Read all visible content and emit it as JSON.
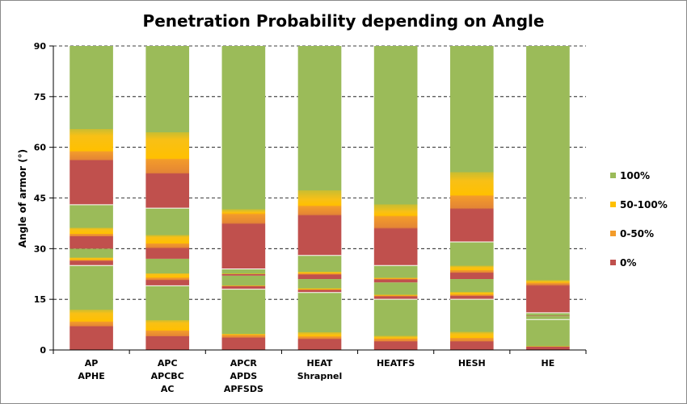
{
  "chart_data": {
    "type": "bar",
    "stacked": true,
    "title": "Penetration Probability depending on Angle",
    "xlabel": "",
    "ylabel": "Angle of armor (°)",
    "ylim": [
      0,
      90
    ],
    "yticks": [
      0,
      15,
      30,
      45,
      60,
      75,
      90
    ],
    "grid": "horizontal-dashed",
    "legend_position": "right",
    "categories": [
      [
        "AP",
        "APHE"
      ],
      [
        "APC",
        "APCBC",
        "AC"
      ],
      [
        "APCR",
        "APDS",
        "APFSDS"
      ],
      [
        "HEAT",
        "Shrapnel"
      ],
      [
        "HEATFS"
      ],
      [
        "HESH"
      ],
      [
        "HE"
      ]
    ],
    "series": [
      {
        "name": "0%",
        "color": "#c0504d",
        "values": [
          25,
          19,
          18,
          17,
          15,
          15,
          9
        ]
      },
      {
        "name": "0-50%",
        "color": "#f39c2a",
        "values": [
          5,
          8,
          4,
          4,
          5,
          6,
          1
        ]
      },
      {
        "name": "50-100%",
        "color": "#ffc000",
        "values": [
          13,
          15,
          2,
          7,
          5,
          11,
          1
        ]
      },
      {
        "name": "100%",
        "color": "#9bbb59",
        "values": [
          47,
          48,
          66,
          62,
          65,
          58,
          79
        ]
      }
    ],
    "legend_order": [
      "100%",
      "50-100%",
      "0-50%",
      "0%"
    ]
  }
}
